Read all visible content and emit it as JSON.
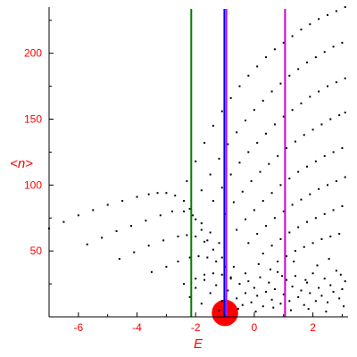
{
  "chart_data": {
    "type": "scatter",
    "title": "",
    "xlabel": "E",
    "ylabel": "<n>",
    "xlim": [
      -7,
      3.2
    ],
    "ylim": [
      0,
      235
    ],
    "x_ticks": [
      -6,
      -4,
      -2,
      0,
      2
    ],
    "x_tick_labels": [
      "-6",
      "-4",
      "-2",
      "0",
      "2"
    ],
    "y_ticks": [
      50,
      100,
      150,
      200
    ],
    "y_tick_labels": [
      "50",
      "100",
      "150",
      "200"
    ],
    "grid": false,
    "legend": "none",
    "colors": {
      "axis_text": "#ff0000",
      "points": "#000000",
      "blob": "#ff0000"
    },
    "vertical_lines": [
      {
        "x": -2.15,
        "color": "#008000"
      },
      {
        "x": -1.02,
        "color": "#0000ff"
      },
      {
        "x": -0.95,
        "color": "#a020f0"
      },
      {
        "x": 1.05,
        "color": "#cc00cc"
      }
    ],
    "red_blob": {
      "x": -1.0,
      "y": 3,
      "radius_x_data": 0.45,
      "radius_y_data": 10
    },
    "series": [
      {
        "x": [
          -7.0,
          -6.5,
          -6.0,
          -5.5,
          -5.0,
          -4.5,
          -4.0,
          -3.6,
          -3.3,
          -3.0,
          -2.7,
          -2.4,
          -2.2,
          -2.0,
          -1.8,
          -1.6
        ],
        "y": [
          67,
          72,
          77,
          81,
          85,
          88,
          91,
          93,
          94,
          94,
          92,
          88,
          82,
          74,
          66,
          58
        ]
      },
      {
        "x": [
          -5.7,
          -5.2,
          -4.7,
          -4.2,
          -3.7,
          -3.2,
          -2.8,
          -2.4,
          -2.1,
          -1.8,
          -1.5,
          -1.2
        ],
        "y": [
          55,
          60,
          65,
          69,
          73,
          77,
          80,
          80,
          77,
          71,
          64,
          56
        ]
      },
      {
        "x": [
          -4.6,
          -4.1,
          -3.6,
          -3.1,
          -2.6,
          -2.3,
          -2.0,
          -1.7,
          -1.4,
          -1.1
        ],
        "y": [
          44,
          49,
          54,
          58,
          61,
          62,
          61,
          57,
          51,
          45
        ]
      },
      {
        "x": [
          -3.5,
          -3.0,
          -2.6,
          -2.2,
          -1.9,
          -1.6,
          -1.3,
          -1.0
        ],
        "y": [
          34,
          38,
          42,
          45,
          46,
          45,
          42,
          38
        ]
      },
      {
        "x": [
          -2.4,
          -2.0,
          -1.7,
          -1.4,
          -1.1,
          -0.8
        ],
        "y": [
          25,
          29,
          32,
          33,
          32,
          29
        ]
      },
      {
        "x": [
          -2.3,
          -2.0,
          -1.7,
          -1.4,
          -1.1,
          -0.8,
          -0.5,
          -0.2,
          0.1,
          0.4,
          0.7,
          1.0,
          1.3,
          1.6,
          1.9,
          2.2,
          2.5,
          2.8,
          3.1
        ],
        "y": [
          103,
          118,
          132,
          145,
          156,
          166,
          175,
          183,
          190,
          197,
          203,
          208,
          213,
          218,
          222,
          226,
          229,
          232,
          235
        ]
      },
      {
        "x": [
          -1.8,
          -1.5,
          -1.2,
          -0.9,
          -0.6,
          -0.3,
          0.0,
          0.3,
          0.6,
          0.9,
          1.2,
          1.5,
          1.8,
          2.1,
          2.4,
          2.7,
          3.0
        ],
        "y": [
          96,
          108,
          120,
          131,
          140,
          149,
          157,
          164,
          171,
          177,
          183,
          188,
          193,
          197,
          201,
          205,
          208
        ]
      },
      {
        "x": [
          -1.4,
          -1.1,
          -0.8,
          -0.5,
          -0.2,
          0.1,
          0.4,
          0.7,
          1.0,
          1.3,
          1.6,
          1.9,
          2.2,
          2.5,
          2.8,
          3.1
        ],
        "y": [
          88,
          98,
          108,
          117,
          125,
          132,
          139,
          146,
          152,
          157,
          162,
          167,
          171,
          175,
          178,
          181
        ]
      },
      {
        "x": [
          -1.0,
          -0.7,
          -0.4,
          -0.1,
          0.2,
          0.5,
          0.8,
          1.1,
          1.4,
          1.7,
          2.0,
          2.3,
          2.6,
          2.9,
          3.1
        ],
        "y": [
          78,
          87,
          95,
          103,
          110,
          116,
          122,
          128,
          133,
          138,
          142,
          146,
          150,
          153,
          155
        ]
      },
      {
        "x": [
          -0.6,
          -0.3,
          0.0,
          0.3,
          0.6,
          0.9,
          1.2,
          1.5,
          1.8,
          2.1,
          2.4,
          2.7,
          3.0
        ],
        "y": [
          66,
          74,
          81,
          88,
          94,
          100,
          105,
          110,
          114,
          118,
          122,
          125,
          128
        ]
      },
      {
        "x": [
          -0.2,
          0.1,
          0.4,
          0.7,
          1.0,
          1.3,
          1.6,
          1.9,
          2.2,
          2.5,
          2.8,
          3.1
        ],
        "y": [
          56,
          63,
          69,
          75,
          80,
          85,
          89,
          93,
          97,
          100,
          103,
          106
        ]
      },
      {
        "x": [
          0.3,
          0.6,
          0.9,
          1.2,
          1.5,
          1.8,
          2.1,
          2.4,
          2.7,
          3.0
        ],
        "y": [
          48,
          54,
          59,
          64,
          68,
          72,
          75,
          78,
          81,
          84
        ]
      },
      {
        "x": [
          0.8,
          1.1,
          1.4,
          1.7,
          2.0,
          2.3,
          2.6,
          2.9
        ],
        "y": [
          42,
          46,
          50,
          53,
          56,
          59,
          61,
          63
        ]
      },
      {
        "x": [
          -2.2,
          -2.0,
          -1.8,
          -1.7,
          -1.5,
          -1.3,
          -1.1,
          -0.9,
          -0.8,
          -0.6,
          -0.5,
          -0.4,
          -0.3,
          -0.2,
          -0.1,
          0.0,
          0.1,
          0.2,
          0.3,
          0.4,
          0.5,
          0.6,
          0.7,
          0.8,
          0.9,
          1.0,
          1.1,
          1.2,
          1.3,
          1.4,
          1.5,
          1.6,
          1.7,
          1.8,
          1.9,
          2.0,
          2.1,
          2.2,
          2.3,
          2.4,
          2.5,
          2.6,
          2.7,
          2.8,
          2.9,
          3.0,
          3.1,
          -0.7,
          -0.3,
          0.15,
          0.55,
          0.95,
          1.35,
          1.75,
          2.15,
          2.55,
          2.95,
          -1.2,
          -0.55,
          0.05,
          0.65,
          1.25,
          1.85,
          2.45,
          3.05
        ],
        "y": [
          15,
          22,
          10,
          28,
          18,
          24,
          12,
          20,
          30,
          14,
          25,
          9,
          18,
          27,
          11,
          22,
          16,
          30,
          8,
          19,
          26,
          13,
          21,
          34,
          10,
          17,
          28,
          12,
          23,
          31,
          15,
          20,
          9,
          26,
          18,
          33,
          12,
          22,
          16,
          29,
          11,
          24,
          19,
          35,
          14,
          21,
          27,
          38,
          33,
          40,
          36,
          31,
          42,
          28,
          39,
          44,
          32,
          5,
          6,
          4,
          7,
          5,
          6,
          4,
          8
        ]
      }
    ]
  }
}
